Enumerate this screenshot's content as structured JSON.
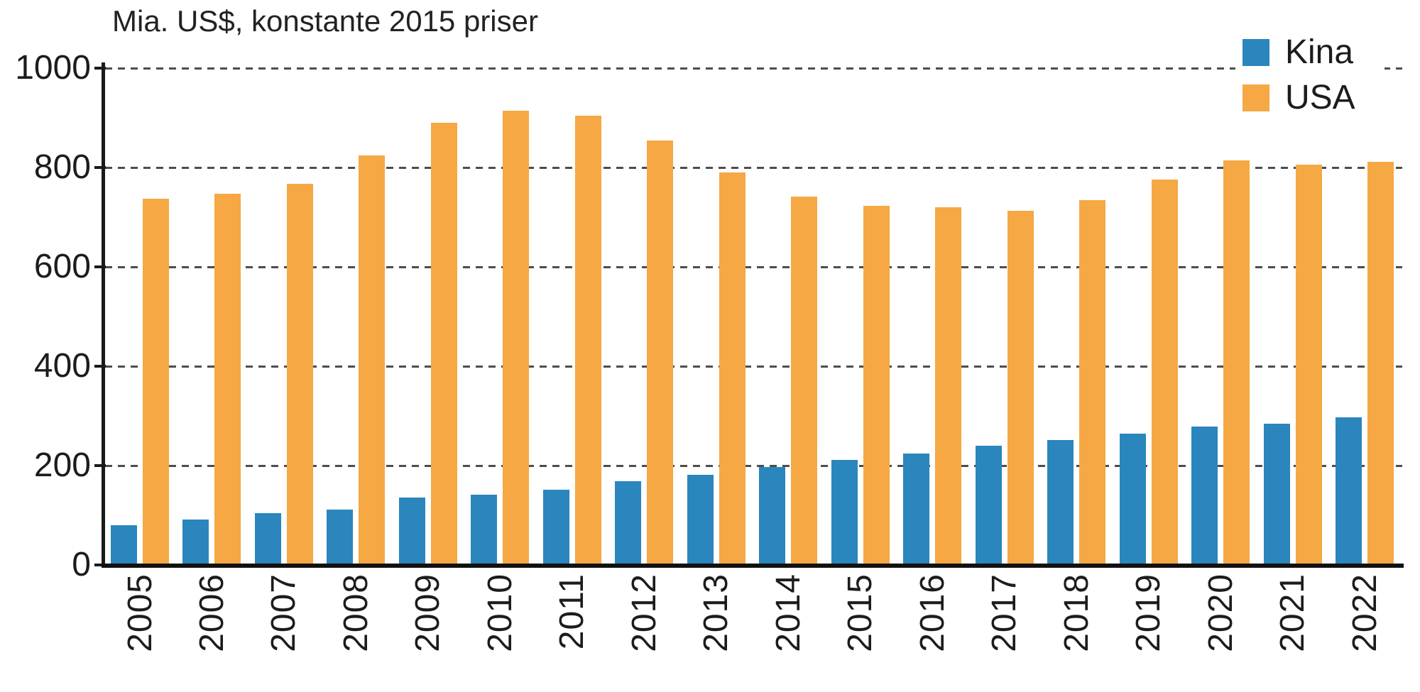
{
  "chart_data": {
    "type": "bar",
    "title": "Mia. US$, konstante 2015 priser",
    "categories": [
      "2005",
      "2006",
      "2007",
      "2008",
      "2009",
      "2010",
      "2011",
      "2012",
      "2013",
      "2014",
      "2015",
      "2016",
      "2017",
      "2018",
      "2019",
      "2020",
      "2021",
      "2022"
    ],
    "series": [
      {
        "name": "Kina",
        "color": "#2A86BC",
        "values": [
          80,
          92,
          104,
          111,
          136,
          142,
          152,
          168,
          182,
          197,
          212,
          225,
          240,
          252,
          265,
          278,
          285,
          297
        ]
      },
      {
        "name": "USA",
        "color": "#F5A843",
        "values": [
          737,
          747,
          767,
          824,
          890,
          915,
          905,
          855,
          790,
          742,
          723,
          720,
          713,
          734,
          776,
          814,
          806,
          811
        ]
      }
    ],
    "xlabel": "",
    "ylabel": "Mia. US$",
    "ylim": [
      0,
      1000
    ],
    "yticks": [
      0,
      200,
      400,
      600,
      800,
      1000
    ],
    "grid": "dashed-horizontal",
    "grid_color": "#4d4d4d",
    "axis_color": "#1a1a1a",
    "legend_position": "top-right",
    "x_tick_rotation": -90
  },
  "legend": {
    "items": [
      {
        "label": "Kina",
        "color": "#2A86BC"
      },
      {
        "label": "USA",
        "color": "#F5A843"
      }
    ]
  }
}
